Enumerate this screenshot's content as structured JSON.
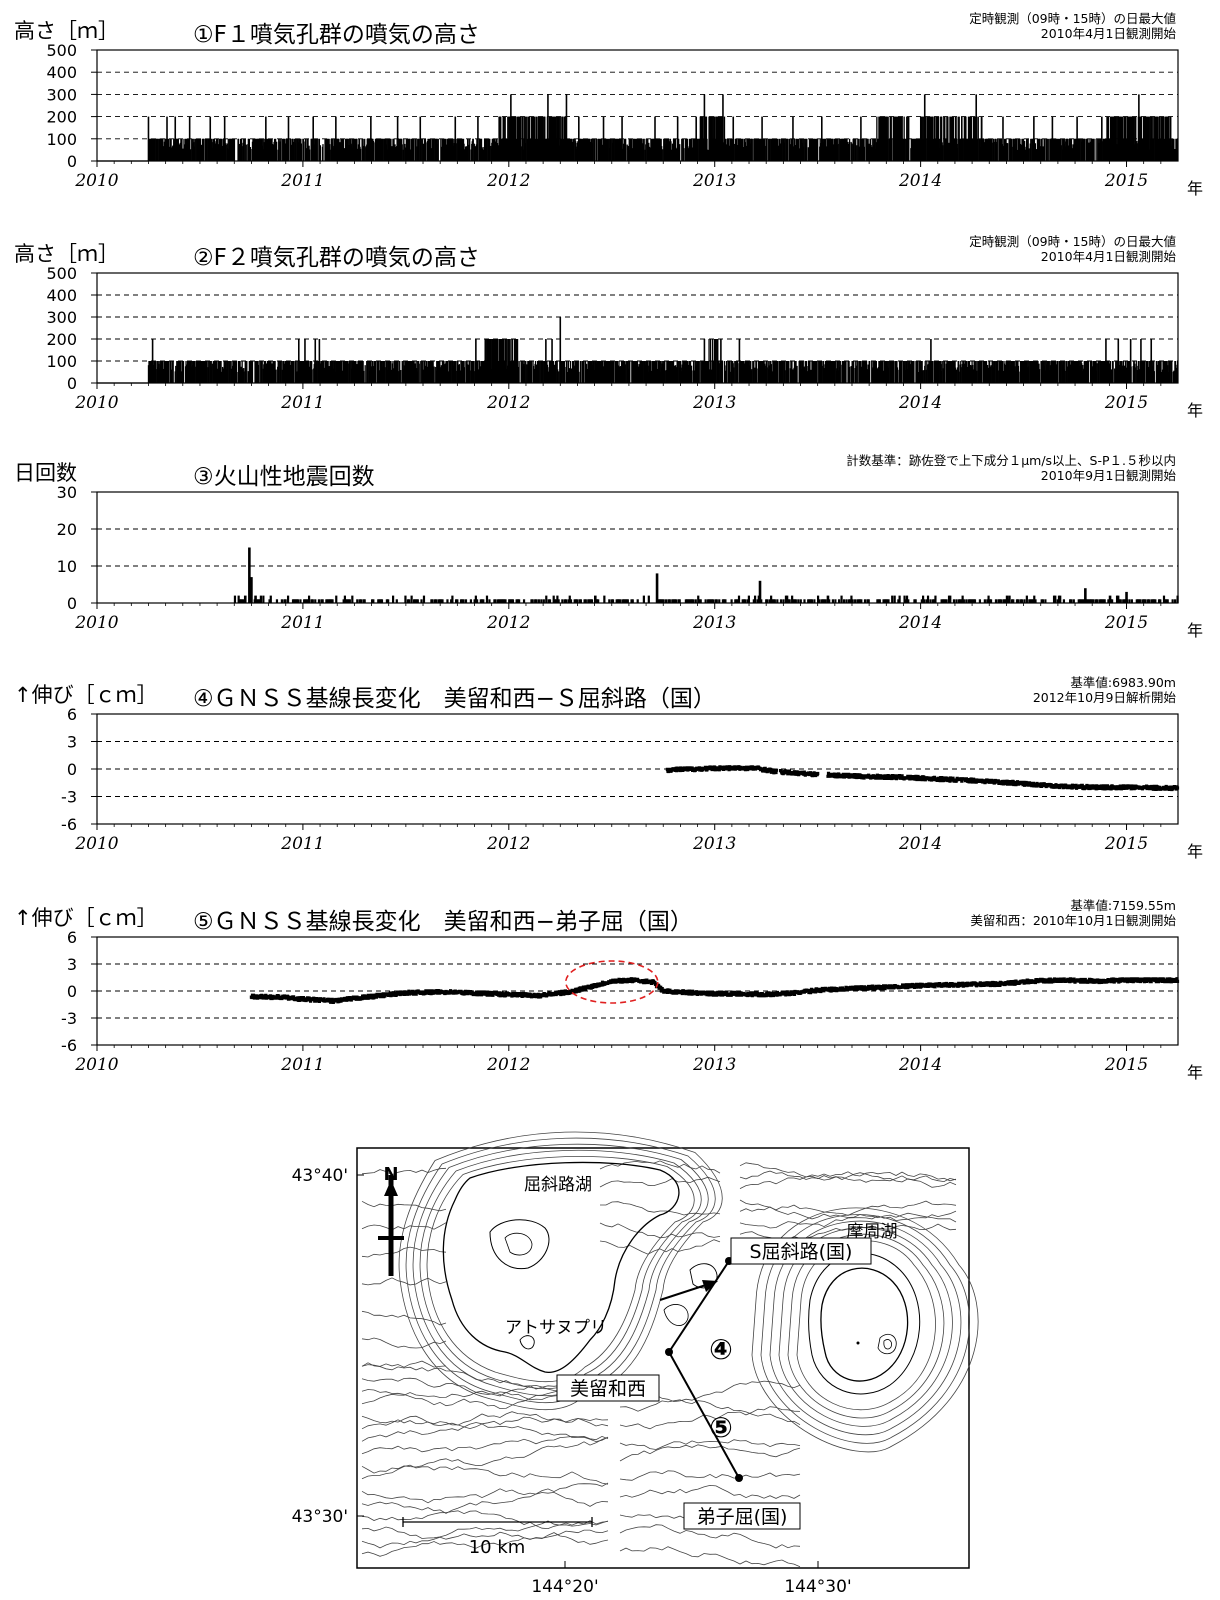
{
  "chart_data": [
    {
      "id": "p1",
      "type": "bar",
      "title": "①F１噴気孔群の噴気の高さ",
      "ylabel": "高さ［ｍ］",
      "note_line1": "定時観測（09時・15時）の日最大値",
      "note_line2": "2010年4月1日観測開始",
      "ylim": [
        0,
        500
      ],
      "yticks": [
        "0",
        "100",
        "200",
        "300",
        "400",
        "500"
      ],
      "x_range": [
        2010,
        2015.25
      ],
      "x_tick_labels": [
        "2010",
        "2011",
        "2012",
        "2013",
        "2014",
        "2015"
      ],
      "x_unit": "年",
      "base_value": 100,
      "data_start": 2010.25,
      "spikes": [
        {
          "x": 2010.25,
          "v": 200
        },
        {
          "x": 2010.34,
          "v": 200
        },
        {
          "x": 2010.38,
          "v": 200
        },
        {
          "x": 2010.45,
          "v": 200
        },
        {
          "x": 2010.55,
          "v": 200
        },
        {
          "x": 2010.62,
          "v": 200
        },
        {
          "x": 2010.82,
          "v": 200
        },
        {
          "x": 2010.93,
          "v": 200
        },
        {
          "x": 2011.05,
          "v": 200
        },
        {
          "x": 2011.16,
          "v": 200
        },
        {
          "x": 2011.33,
          "v": 200
        },
        {
          "x": 2011.46,
          "v": 200
        },
        {
          "x": 2011.57,
          "v": 200
        },
        {
          "x": 2011.74,
          "v": 200
        },
        {
          "x": 2011.85,
          "v": 200
        },
        {
          "x": 2011.96,
          "v": 200
        },
        {
          "x": 2012.01,
          "v": 300
        },
        {
          "x": 2012.05,
          "v": 200
        },
        {
          "x": 2012.1,
          "v": 200
        },
        {
          "x": 2012.16,
          "v": 200
        },
        {
          "x": 2012.19,
          "v": 300
        },
        {
          "x": 2012.24,
          "v": 200
        },
        {
          "x": 2012.28,
          "v": 300
        },
        {
          "x": 2012.34,
          "v": 200
        },
        {
          "x": 2012.46,
          "v": 200
        },
        {
          "x": 2012.55,
          "v": 200
        },
        {
          "x": 2012.71,
          "v": 200
        },
        {
          "x": 2012.82,
          "v": 200
        },
        {
          "x": 2012.91,
          "v": 200
        },
        {
          "x": 2012.95,
          "v": 300
        },
        {
          "x": 2013.0,
          "v": 200
        },
        {
          "x": 2013.04,
          "v": 300
        },
        {
          "x": 2013.09,
          "v": 200
        },
        {
          "x": 2013.23,
          "v": 200
        },
        {
          "x": 2013.38,
          "v": 200
        },
        {
          "x": 2013.52,
          "v": 200
        },
        {
          "x": 2013.71,
          "v": 200
        },
        {
          "x": 2013.83,
          "v": 200
        },
        {
          "x": 2013.91,
          "v": 200
        },
        {
          "x": 2014.02,
          "v": 300
        },
        {
          "x": 2014.1,
          "v": 200
        },
        {
          "x": 2014.2,
          "v": 200
        },
        {
          "x": 2014.27,
          "v": 300
        },
        {
          "x": 2014.4,
          "v": 200
        },
        {
          "x": 2014.55,
          "v": 200
        },
        {
          "x": 2014.64,
          "v": 200
        },
        {
          "x": 2014.76,
          "v": 200
        },
        {
          "x": 2014.88,
          "v": 200
        },
        {
          "x": 2015.02,
          "v": 200
        },
        {
          "x": 2015.06,
          "v": 300
        },
        {
          "x": 2015.12,
          "v": 200
        },
        {
          "x": 2015.16,
          "v": 200
        },
        {
          "x": 2015.2,
          "v": 200
        }
      ],
      "dense_spans": [
        {
          "from": 2011.95,
          "to": 2012.28,
          "v": 200
        },
        {
          "from": 2012.92,
          "to": 2013.06,
          "v": 200
        },
        {
          "from": 2013.78,
          "to": 2013.95,
          "v": 200
        },
        {
          "from": 2014.0,
          "to": 2014.3,
          "v": 200
        },
        {
          "from": 2014.9,
          "to": 2015.22,
          "v": 200
        }
      ]
    },
    {
      "id": "p2",
      "type": "bar",
      "title": "②F２噴気孔群の噴気の高さ",
      "ylabel": "高さ［ｍ］",
      "note_line1": "定時観測（09時・15時）の日最大値",
      "note_line2": "2010年4月1日観測開始",
      "ylim": [
        0,
        500
      ],
      "yticks": [
        "0",
        "100",
        "200",
        "300",
        "400",
        "500"
      ],
      "x_range": [
        2010,
        2015.25
      ],
      "x_tick_labels": [
        "2010",
        "2011",
        "2012",
        "2013",
        "2014",
        "2015"
      ],
      "x_unit": "年",
      "base_value": 100,
      "data_start": 2010.25,
      "spikes": [
        {
          "x": 2010.27,
          "v": 200
        },
        {
          "x": 2010.98,
          "v": 200
        },
        {
          "x": 2011.01,
          "v": 200
        },
        {
          "x": 2011.06,
          "v": 200
        },
        {
          "x": 2011.08,
          "v": 200
        },
        {
          "x": 2011.84,
          "v": 200
        },
        {
          "x": 2011.9,
          "v": 200
        },
        {
          "x": 2012.0,
          "v": 200
        },
        {
          "x": 2012.04,
          "v": 200
        },
        {
          "x": 2012.18,
          "v": 200
        },
        {
          "x": 2012.21,
          "v": 200
        },
        {
          "x": 2012.25,
          "v": 300
        },
        {
          "x": 2012.95,
          "v": 200
        },
        {
          "x": 2013.0,
          "v": 200
        },
        {
          "x": 2013.03,
          "v": 200
        },
        {
          "x": 2013.12,
          "v": 200
        },
        {
          "x": 2014.05,
          "v": 200
        },
        {
          "x": 2014.9,
          "v": 200
        },
        {
          "x": 2014.96,
          "v": 200
        },
        {
          "x": 2015.02,
          "v": 200
        },
        {
          "x": 2015.07,
          "v": 200
        },
        {
          "x": 2015.12,
          "v": 200
        }
      ],
      "dense_spans": [
        {
          "from": 2011.88,
          "to": 2012.05,
          "v": 200
        },
        {
          "from": 2012.97,
          "to": 2013.02,
          "v": 200
        }
      ]
    },
    {
      "id": "p3",
      "type": "bar",
      "title": "③火山性地震回数",
      "ylabel": "日回数",
      "note_line1": "計数基準：跡佐登で上下成分１μm/s以上、S-P１.５秒以内",
      "note_line2": "2010年9月1日観測開始",
      "ylim": [
        0,
        30
      ],
      "yticks": [
        "0",
        "10",
        "20",
        "30"
      ],
      "x_range": [
        2010,
        2015.25
      ],
      "x_tick_labels": [
        "2010",
        "2011",
        "2012",
        "2013",
        "2014",
        "2015"
      ],
      "x_unit": "年",
      "data_start": 2010.67,
      "spikes": [
        {
          "x": 2010.72,
          "v": 2
        },
        {
          "x": 2010.74,
          "v": 15
        },
        {
          "x": 2010.75,
          "v": 7
        },
        {
          "x": 2010.77,
          "v": 2
        },
        {
          "x": 2012.72,
          "v": 8
        },
        {
          "x": 2013.22,
          "v": 6
        },
        {
          "x": 2014.8,
          "v": 4
        },
        {
          "x": 2015.0,
          "v": 3
        },
        {
          "x": 2012.42,
          "v": 2
        },
        {
          "x": 2013.55,
          "v": 2
        },
        {
          "x": 2014.42,
          "v": 2
        },
        {
          "x": 2014.92,
          "v": 2
        }
      ]
    },
    {
      "id": "p4",
      "type": "scatter",
      "title": "④ＧＮＳＳ基線長変化　美留和西−Ｓ屈斜路（国）",
      "ylabel": "↑伸び［ｃｍ］",
      "note_line1": "基準値:6983.90m",
      "note_line2": "2012年10月9日解析開始",
      "ylim": [
        -6,
        6
      ],
      "yticks": [
        "-6",
        "-3",
        "0",
        "3",
        "6"
      ],
      "x_range": [
        2010,
        2015.25
      ],
      "x_tick_labels": [
        "2010",
        "2011",
        "2012",
        "2013",
        "2014",
        "2015"
      ],
      "x_unit": "年",
      "series": [
        {
          "values": [
            [
              2012.77,
              -0.1
            ],
            [
              2012.9,
              0.0
            ],
            [
              2013.05,
              0.1
            ],
            [
              2013.2,
              0.1
            ],
            [
              2013.3,
              -0.3
            ],
            [
              2013.5,
              -0.6
            ],
            [
              2013.55,
              -0.65
            ],
            [
              2013.7,
              -0.8
            ],
            [
              2013.9,
              -0.9
            ],
            [
              2014.1,
              -1.1
            ],
            [
              2014.3,
              -1.3
            ],
            [
              2014.5,
              -1.6
            ],
            [
              2014.7,
              -1.9
            ],
            [
              2014.85,
              -2.0
            ],
            [
              2015.0,
              -2.0
            ],
            [
              2015.25,
              -2.1
            ]
          ]
        }
      ],
      "gaps": [
        [
          2013.3,
          2013.32
        ],
        [
          2013.5,
          2013.55
        ]
      ]
    },
    {
      "id": "p5",
      "type": "scatter",
      "title": "⑤ＧＮＳＳ基線長変化　美留和西−弟子屈（国）",
      "ylabel": "↑伸び［ｃｍ］",
      "note_line1": "基準値:7159.55m",
      "note_line2": "美留和西：2010年10月1日観測開始",
      "ylim": [
        -6,
        6
      ],
      "yticks": [
        "-6",
        "-3",
        "0",
        "3",
        "6"
      ],
      "x_range": [
        2010,
        2015.25
      ],
      "x_tick_labels": [
        "2010",
        "2011",
        "2012",
        "2013",
        "2014",
        "2015"
      ],
      "x_unit": "年",
      "series": [
        {
          "values": [
            [
              2010.75,
              -0.6
            ],
            [
              2010.9,
              -0.7
            ],
            [
              2011.0,
              -0.9
            ],
            [
              2011.15,
              -1.1
            ],
            [
              2011.3,
              -0.7
            ],
            [
              2011.5,
              -0.2
            ],
            [
              2011.7,
              -0.1
            ],
            [
              2011.9,
              -0.3
            ],
            [
              2012.0,
              -0.4
            ],
            [
              2012.15,
              -0.5
            ],
            [
              2012.3,
              -0.1
            ],
            [
              2012.4,
              0.5
            ],
            [
              2012.5,
              1.1
            ],
            [
              2012.6,
              1.2
            ],
            [
              2012.7,
              1.0
            ],
            [
              2012.75,
              0.0
            ],
            [
              2012.9,
              -0.2
            ],
            [
              2013.0,
              -0.3
            ],
            [
              2013.1,
              -0.3
            ],
            [
              2013.25,
              -0.4
            ],
            [
              2013.4,
              -0.2
            ],
            [
              2013.5,
              0.1
            ],
            [
              2013.6,
              0.2
            ],
            [
              2013.8,
              0.4
            ],
            [
              2014.0,
              0.6
            ],
            [
              2014.2,
              0.7
            ],
            [
              2014.4,
              0.8
            ],
            [
              2014.55,
              1.1
            ],
            [
              2014.7,
              1.2
            ],
            [
              2014.85,
              1.1
            ],
            [
              2015.0,
              1.2
            ],
            [
              2015.25,
              1.2
            ]
          ]
        }
      ],
      "highlight_ellipse": {
        "x_center": 2012.5,
        "y_center": 1.0
      }
    }
  ],
  "map": {
    "lat_labels": [
      "43°40'",
      "43°30'"
    ],
    "lon_labels": [
      "144°20'",
      "144°30'"
    ],
    "north_label": "N",
    "lake_label": "屈斜路湖",
    "mashu_label": "摩周湖",
    "atosa_label": "アトサヌプリ",
    "station_s_kussharo": "S屈斜路(国)",
    "station_biruwa": "美留和西",
    "station_teshikaga": "弟子屈(国)",
    "baseline4": "④",
    "baseline5": "⑤",
    "scale_label": "10 km"
  }
}
